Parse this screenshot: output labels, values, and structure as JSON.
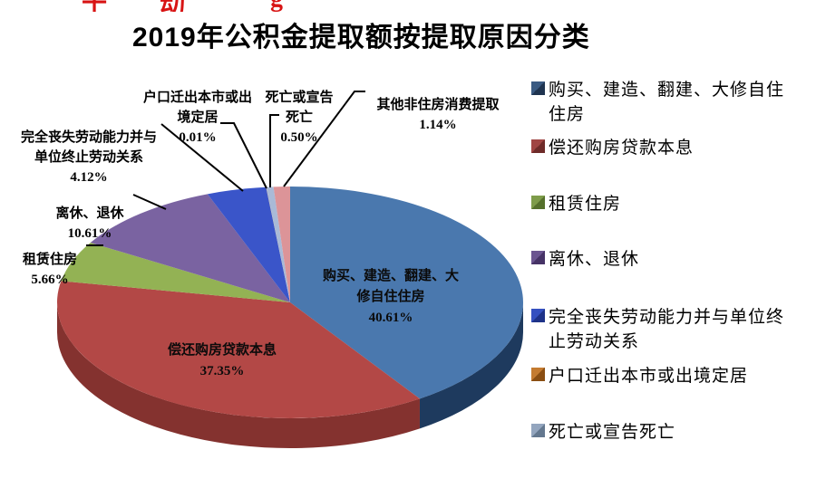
{
  "decor": {
    "cropped_red_text_fragments": [
      "十",
      "动",
      "g"
    ]
  },
  "chart_data": {
    "type": "pie",
    "style": "3d-pie",
    "title": "2019年公积金提取额按提取原因分类",
    "unit": "%",
    "start_angle": "12-oclock",
    "direction": "clockwise",
    "legend_position": "right",
    "background": "#FFFFFF",
    "slices": [
      {
        "label": "购买、建造、翻建、大修自住住房",
        "value": 40.61,
        "color": "#4A78AE",
        "side": "#1E3A5E"
      },
      {
        "label": "偿还购房贷款本息",
        "value": 37.35,
        "color": "#B34846",
        "side": "#84322F"
      },
      {
        "label": "租赁住房",
        "value": 5.66,
        "color": "#93B254",
        "side": "#627C30"
      },
      {
        "label": "离休、退休",
        "value": 10.61,
        "color": "#7A63A1",
        "side": "#514070"
      },
      {
        "label": "完全丧失劳动能力并与单位终止劳动关系",
        "value": 4.12,
        "color": "#3A55C9",
        "side": "#25378C"
      },
      {
        "label": "户口迁出本市或出境定居",
        "value": 0.01,
        "color": "#CC7A2D",
        "side": "#8F5418"
      },
      {
        "label": "死亡或宣告死亡",
        "value": 0.5,
        "color": "#A9BAD7",
        "side": "#75849C"
      },
      {
        "label": "其他非住房消费提取",
        "value": 1.14,
        "color": "#DC9498",
        "side": "#A3686C"
      }
    ]
  },
  "pie_labels": {
    "buy": {
      "text": "购买、建造、翻建、大\n修自住住房",
      "pct": "40.61%"
    },
    "loan": {
      "text": "偿还购房贷款本息",
      "pct": "37.35%"
    }
  },
  "callouts": {
    "disability": {
      "text": "完全丧失劳动能力并与\n单位终止劳动关系",
      "pct": "4.12%"
    },
    "relocation": {
      "text": "户口迁出本市或出\n境定居",
      "pct": "0.01%"
    },
    "death": {
      "text": "死亡或宣告\n死亡",
      "pct": "0.50%"
    },
    "other": {
      "text": "其他非住房消费提取",
      "pct": "1.14%"
    },
    "retirement": {
      "text": "离休、退休",
      "pct": "10.61%"
    },
    "rent": {
      "text": "租赁住房",
      "pct": "5.66%"
    }
  },
  "legend": {
    "items": [
      {
        "label": "购买、建造、翻建、大修自住\n住房",
        "swatch_light": "#3A5A82",
        "swatch_dark": "#1F3450"
      },
      {
        "label": "偿还购房贷款本息",
        "swatch_light": "#A04543",
        "swatch_dark": "#6E2B29"
      },
      {
        "label": "租赁住房",
        "swatch_light": "#7E9C4A",
        "swatch_dark": "#55702C"
      },
      {
        "label": "离休、退休",
        "swatch_light": "#6B5590",
        "swatch_dark": "#463366"
      },
      {
        "label": "完全丧失劳动能力并与单位终\n止劳动关系",
        "swatch_light": "#3450C0",
        "swatch_dark": "#1E3288"
      },
      {
        "label": "户口迁出本市或出境定居",
        "swatch_light": "#C47B30",
        "swatch_dark": "#8A4E12"
      },
      {
        "label": "死亡或宣告死亡",
        "swatch_light": "#93A5BE",
        "swatch_dark": "#64788F"
      }
    ]
  }
}
